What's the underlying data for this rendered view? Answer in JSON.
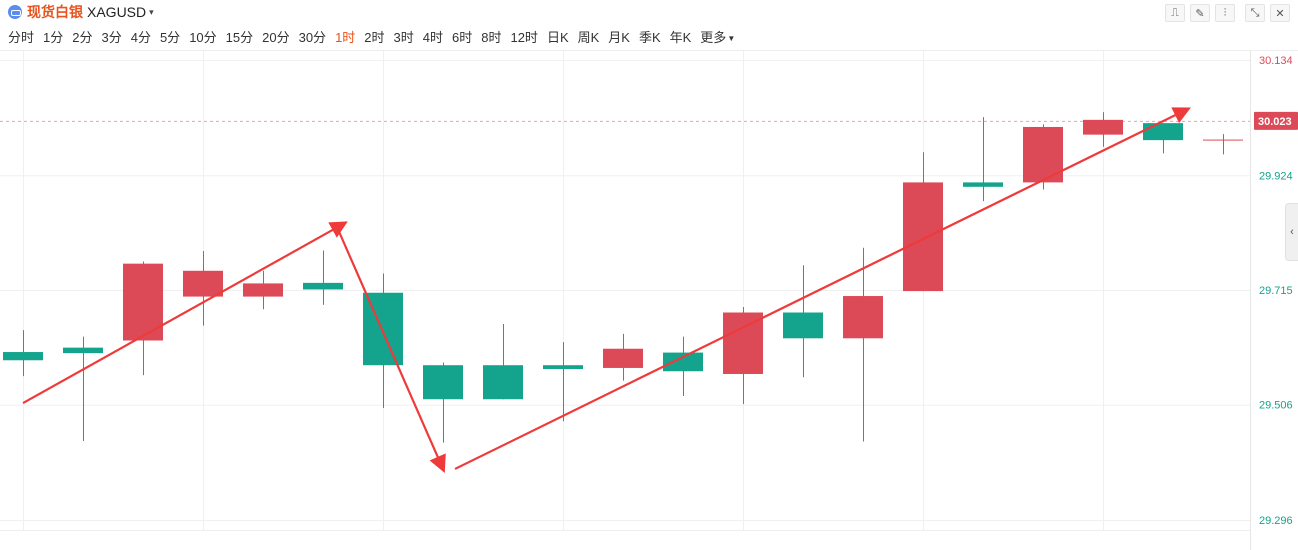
{
  "header": {
    "symbol_name": "现货白银",
    "symbol_code": "XAGUSD",
    "symbol_caret": "▾"
  },
  "toolbar": [
    {
      "icon": "line-chart-icon",
      "glyph": "⎍"
    },
    {
      "icon": "draw-icon",
      "glyph": "✎"
    },
    {
      "icon": "candlestick-icon",
      "glyph": "⫶"
    },
    {
      "icon": "collapse-icon",
      "glyph": "⤡"
    },
    {
      "icon": "close-icon",
      "glyph": "✕"
    }
  ],
  "periods": [
    "分时",
    "1分",
    "2分",
    "3分",
    "4分",
    "5分",
    "10分",
    "15分",
    "20分",
    "30分",
    "1时",
    "2时",
    "3时",
    "4时",
    "6时",
    "8时",
    "12时",
    "日K",
    "周K",
    "月K",
    "季K",
    "年K"
  ],
  "period_more": "更多",
  "active_period": "1时",
  "side_tab_glyph": "‹",
  "colors": {
    "up": "#dd4a57",
    "down": "#14a38c",
    "arrow": "#ee3a3a",
    "price_tag_bg": "#dd4a57",
    "axis_top_label": "#dd4a57",
    "axis_label": "#14a38c"
  },
  "chart_data": {
    "type": "candlestick",
    "y_ticks": [
      30.134,
      29.924,
      29.715,
      29.506,
      29.296
    ],
    "y_tick_labels": [
      "30.134",
      "29.924",
      "29.715",
      "29.506",
      "29.296"
    ],
    "ylim": [
      29.296,
      30.134
    ],
    "last_price": 30.023,
    "last_price_label": "30.023",
    "candles": [
      {
        "open": 29.602,
        "close": 29.587,
        "high": 29.642,
        "low": 29.558
      },
      {
        "open": 29.61,
        "close": 29.6,
        "high": 29.63,
        "low": 29.44
      },
      {
        "open": 29.623,
        "close": 29.763,
        "high": 29.767,
        "low": 29.56
      },
      {
        "open": 29.703,
        "close": 29.75,
        "high": 29.786,
        "low": 29.65
      },
      {
        "open": 29.703,
        "close": 29.727,
        "high": 29.75,
        "low": 29.68
      },
      {
        "open": 29.728,
        "close": 29.716,
        "high": 29.787,
        "low": 29.688
      },
      {
        "open": 29.71,
        "close": 29.578,
        "high": 29.745,
        "low": 29.5
      },
      {
        "open": 29.578,
        "close": 29.516,
        "high": 29.583,
        "low": 29.437
      },
      {
        "open": 29.578,
        "close": 29.516,
        "high": 29.653,
        "low": 29.516
      },
      {
        "open": 29.578,
        "close": 29.571,
        "high": 29.62,
        "low": 29.476
      },
      {
        "open": 29.573,
        "close": 29.608,
        "high": 29.635,
        "low": 29.55
      },
      {
        "open": 29.601,
        "close": 29.567,
        "high": 29.63,
        "low": 29.522
      },
      {
        "open": 29.562,
        "close": 29.674,
        "high": 29.684,
        "low": 29.507
      },
      {
        "open": 29.674,
        "close": 29.627,
        "high": 29.76,
        "low": 29.556
      },
      {
        "open": 29.627,
        "close": 29.704,
        "high": 29.792,
        "low": 29.439
      },
      {
        "open": 29.713,
        "close": 29.911,
        "high": 29.966,
        "low": 29.713
      },
      {
        "open": 29.911,
        "close": 29.903,
        "high": 30.03,
        "low": 29.877
      },
      {
        "open": 29.911,
        "close": 30.012,
        "high": 30.017,
        "low": 29.898
      },
      {
        "open": 29.998,
        "close": 30.025,
        "high": 30.039,
        "low": 29.976
      },
      {
        "open": 30.019,
        "close": 29.988,
        "high": 30.019,
        "low": 29.964
      },
      {
        "open": 29.989,
        "close": 29.989,
        "high": 29.999,
        "low": 29.962
      }
    ],
    "arrows": [
      {
        "from": [
          0,
          29.509
        ],
        "to": [
          5.35,
          29.836
        ]
      },
      {
        "from": [
          5.2,
          29.838
        ],
        "to": [
          7.0,
          29.389
        ]
      },
      {
        "from": [
          7.2,
          29.389
        ],
        "to": [
          19.4,
          30.044
        ]
      }
    ]
  }
}
